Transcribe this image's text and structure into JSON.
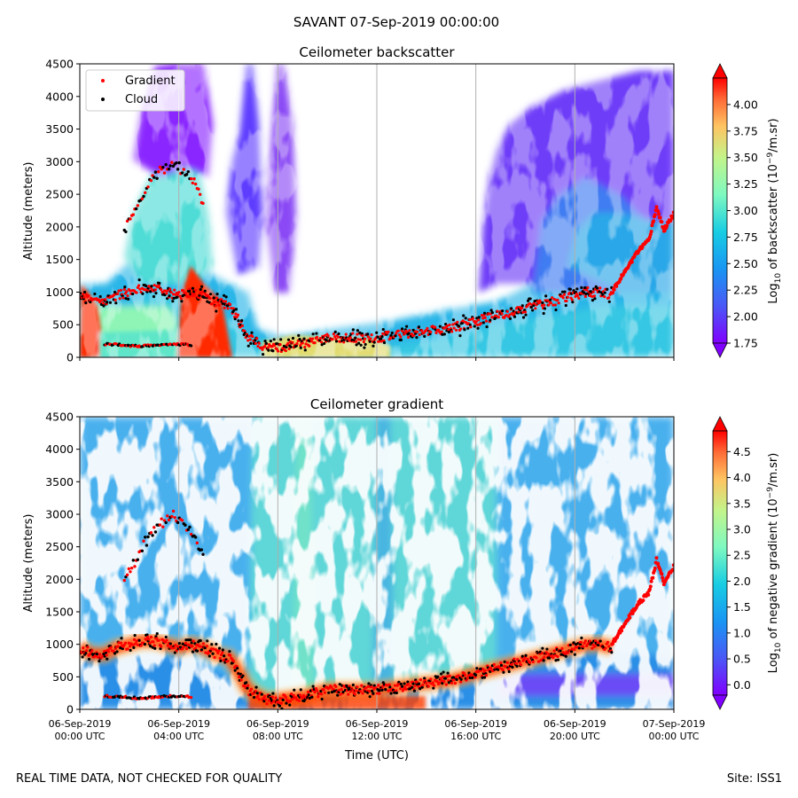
{
  "figure": {
    "suptitle": "SAVANT 07-Sep-2019 00:00:00",
    "footer_left": "REAL TIME DATA, NOT CHECKED FOR QUALITY",
    "footer_right": "Site: ISS1"
  },
  "chart_data": [
    {
      "type": "heatmap",
      "title": "Ceilometer backscatter",
      "ylabel": "Altitude (meters)",
      "xlabel": "",
      "xlim_hours": [
        0,
        24
      ],
      "ylim": [
        0,
        4500
      ],
      "yticks": [
        "0",
        "500",
        "1000",
        "1500",
        "2000",
        "2500",
        "3000",
        "3500",
        "4000",
        "4500"
      ],
      "xticks": [],
      "colorbar": {
        "label_prefix": "Log",
        "label_sub": "10",
        "label_mid": " of backscatter (10",
        "label_sup": "−9",
        "label_suffix": "/m.sr)",
        "range": [
          1.75,
          4.25
        ],
        "ticks": [
          "1.75",
          "2.00",
          "2.25",
          "2.50",
          "2.75",
          "3.00",
          "3.25",
          "3.50",
          "3.75",
          "4.00"
        ],
        "extend": "both",
        "colormap": "rainbow"
      },
      "legend": {
        "placement": "top-left",
        "entries": [
          {
            "label": "Gradient",
            "color": "#ff0000"
          },
          {
            "label": "Cloud",
            "color": "#000000"
          }
        ]
      },
      "vgrid_hours": [
        4,
        8,
        12,
        16,
        20
      ]
    },
    {
      "type": "heatmap",
      "title": "Ceilometer gradient",
      "ylabel": "Altitude (meters)",
      "xlabel": "Time (UTC)",
      "xlim_hours": [
        0,
        24
      ],
      "ylim": [
        0,
        4500
      ],
      "yticks": [
        "0",
        "500",
        "1000",
        "1500",
        "2000",
        "2500",
        "3000",
        "3500",
        "4000",
        "4500"
      ],
      "xticks": [
        {
          "line1": "06-Sep-2019",
          "line2": "00:00 UTC"
        },
        {
          "line1": "06-Sep-2019",
          "line2": "04:00 UTC"
        },
        {
          "line1": "06-Sep-2019",
          "line2": "08:00 UTC"
        },
        {
          "line1": "06-Sep-2019",
          "line2": "12:00 UTC"
        },
        {
          "line1": "06-Sep-2019",
          "line2": "16:00 UTC"
        },
        {
          "line1": "06-Sep-2019",
          "line2": "20:00 UTC"
        },
        {
          "line1": "07-Sep-2019",
          "line2": "00:00 UTC"
        }
      ],
      "colorbar": {
        "label_prefix": "Log",
        "label_sub": "10",
        "label_mid": " of negative gradient (10",
        "label_sup": "−9",
        "label_suffix": "/m.sr)",
        "range": [
          -0.2,
          4.9
        ],
        "ticks": [
          "0.0",
          "0.5",
          "1.0",
          "1.5",
          "2.0",
          "2.5",
          "3.0",
          "3.5",
          "4.0",
          "4.5"
        ],
        "extend": "both",
        "colormap": "rainbow"
      },
      "vgrid_hours": [
        4,
        8,
        12,
        16,
        20
      ]
    }
  ],
  "boundary_layer_height": {
    "hours": [
      0,
      0.5,
      1,
      1.5,
      2,
      2.5,
      3,
      3.5,
      4,
      4.5,
      5,
      5.5,
      6,
      6.3,
      6.8,
      7.5,
      8,
      9,
      10,
      11,
      12,
      13,
      14,
      15,
      16,
      17,
      18,
      19,
      20,
      20.5,
      21,
      21.5
    ],
    "meters": [
      950,
      850,
      850,
      950,
      1000,
      1050,
      1050,
      1000,
      950,
      1000,
      950,
      850,
      800,
      650,
      300,
      150,
      150,
      200,
      300,
      300,
      300,
      350,
      400,
      450,
      550,
      650,
      750,
      850,
      950,
      1000,
      1000,
      950
    ]
  },
  "early_cloud_layer": {
    "hours": [
      1.8,
      2.2,
      2.6,
      3.0,
      3.4,
      3.8,
      4.2,
      4.6,
      5.0
    ],
    "meters": [
      1950,
      2250,
      2550,
      2750,
      2900,
      3000,
      2850,
      2700,
      2300
    ]
  },
  "late_gradient_rise": {
    "hours": [
      21.5,
      22.0,
      22.5,
      23.0,
      23.3,
      23.6,
      24.0
    ],
    "meters": [
      1000,
      1300,
      1600,
      1800,
      2300,
      1950,
      2200
    ]
  },
  "surface_layer": {
    "hours": [
      1,
      1.5,
      2,
      2.5,
      3,
      3.5,
      4,
      4.5
    ],
    "meters": [
      200,
      200,
      180,
      170,
      190,
      200,
      200,
      190
    ]
  }
}
